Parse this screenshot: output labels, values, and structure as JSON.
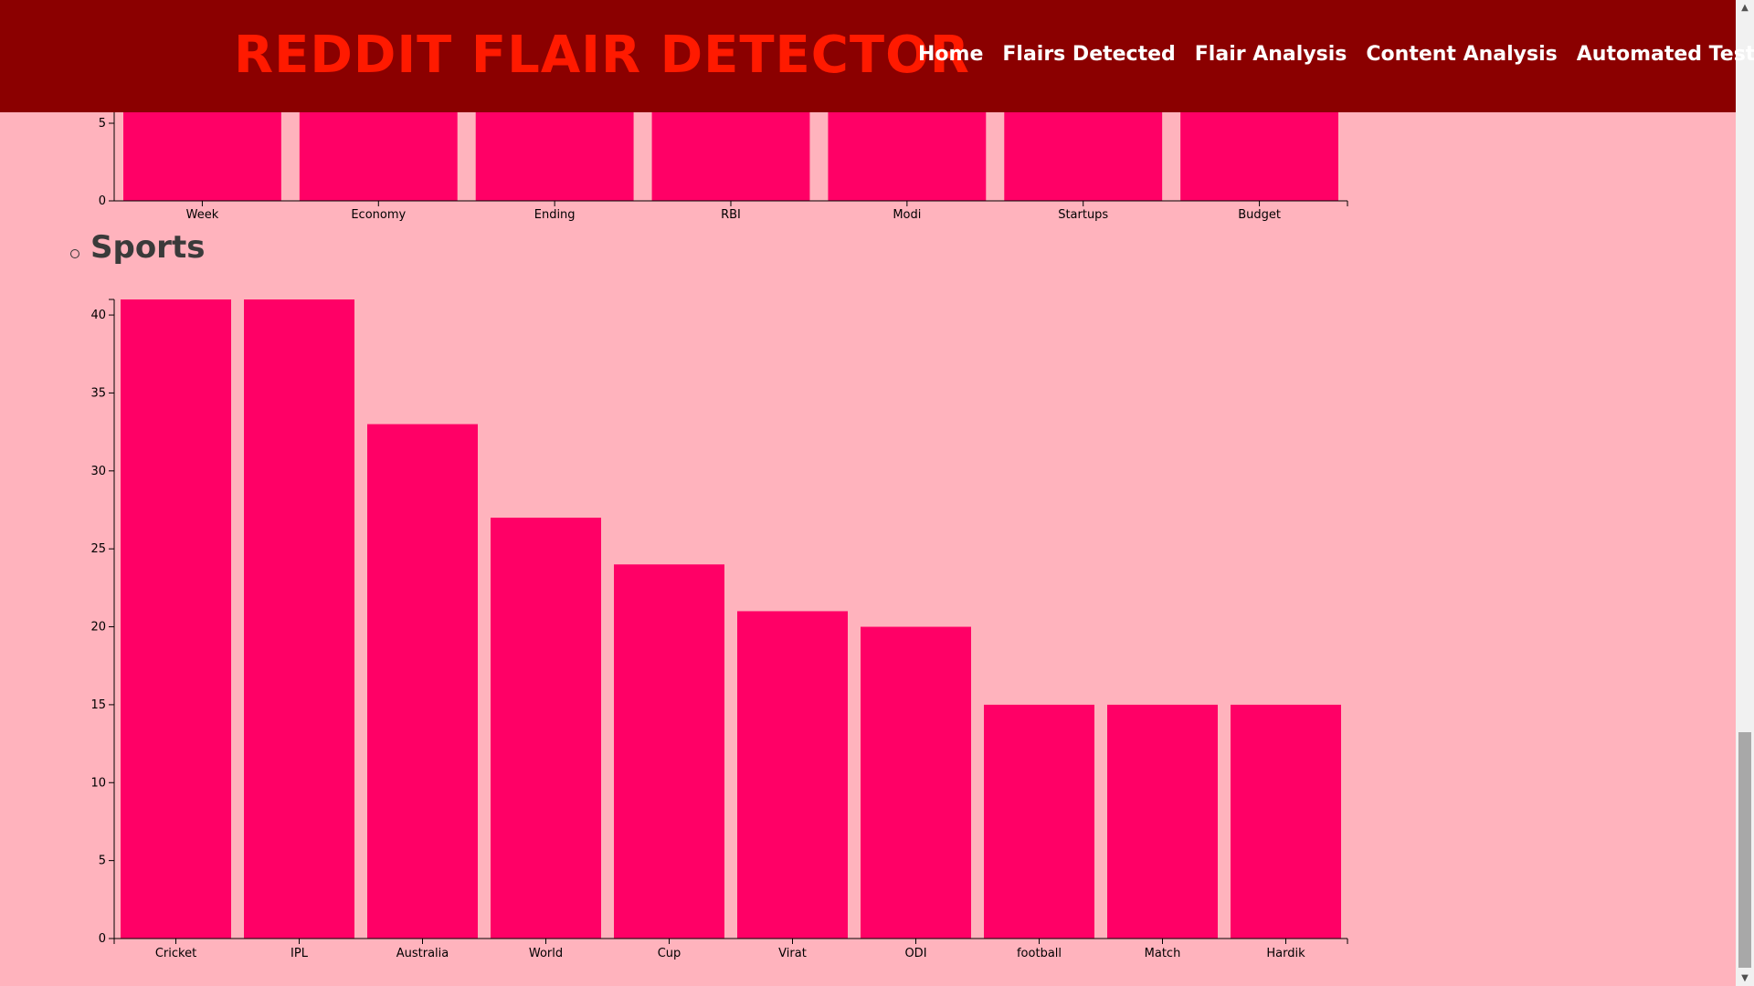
{
  "navbar": {
    "brand": "REDDIT FLAIR DETECTOR",
    "links": [
      "Home",
      "Flairs Detected",
      "Flair Analysis",
      "Content Analysis",
      "Automated Testing"
    ]
  },
  "sections": {
    "sports_title": "Sports"
  },
  "colors": {
    "page_bg": "#ffb3bd",
    "navbar_bg": "#8b0000",
    "brand": "#ff1a00",
    "bar": "#ff0066"
  },
  "chart_data": [
    {
      "type": "bar",
      "title": "",
      "categories": [
        "Week",
        "Economy",
        "Ending",
        "RBI",
        "Modi",
        "Startups",
        "Budget"
      ],
      "y_ticks": [
        0,
        5
      ],
      "note_values_partial": true
    },
    {
      "type": "bar",
      "title": "",
      "categories": [
        "Cricket",
        "IPL",
        "Australia",
        "World",
        "Cup",
        "Virat",
        "ODI",
        "football",
        "Match",
        "Hardik"
      ],
      "values": [
        41,
        41,
        33,
        27,
        24,
        21,
        20,
        15,
        15,
        15
      ],
      "ylim": [
        0,
        41
      ],
      "y_ticks": [
        0,
        5,
        10,
        15,
        20,
        25,
        30,
        35,
        40
      ],
      "xlabel": "",
      "ylabel": "",
      "grid": false
    }
  ]
}
